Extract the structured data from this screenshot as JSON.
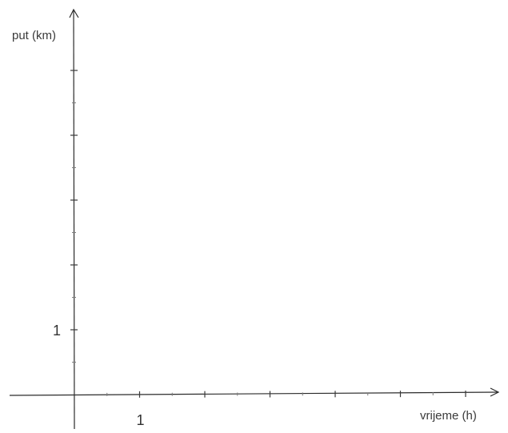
{
  "chart_data": {
    "type": "line",
    "title": "",
    "xlabel": "vrijeme (h)",
    "ylabel": "put (km)",
    "xlim": [
      -1,
      6.5
    ],
    "ylim": [
      -0.5,
      5.8
    ],
    "x_ticks": [
      1,
      2,
      3,
      4,
      5,
      6
    ],
    "x_tick_labels": [
      "1"
    ],
    "y_ticks": [
      1,
      2,
      3,
      4,
      5
    ],
    "y_tick_labels": [
      "1"
    ],
    "series": [],
    "grid": false,
    "colors": {
      "axis": "#2b2b2b",
      "text": "#333333"
    }
  }
}
